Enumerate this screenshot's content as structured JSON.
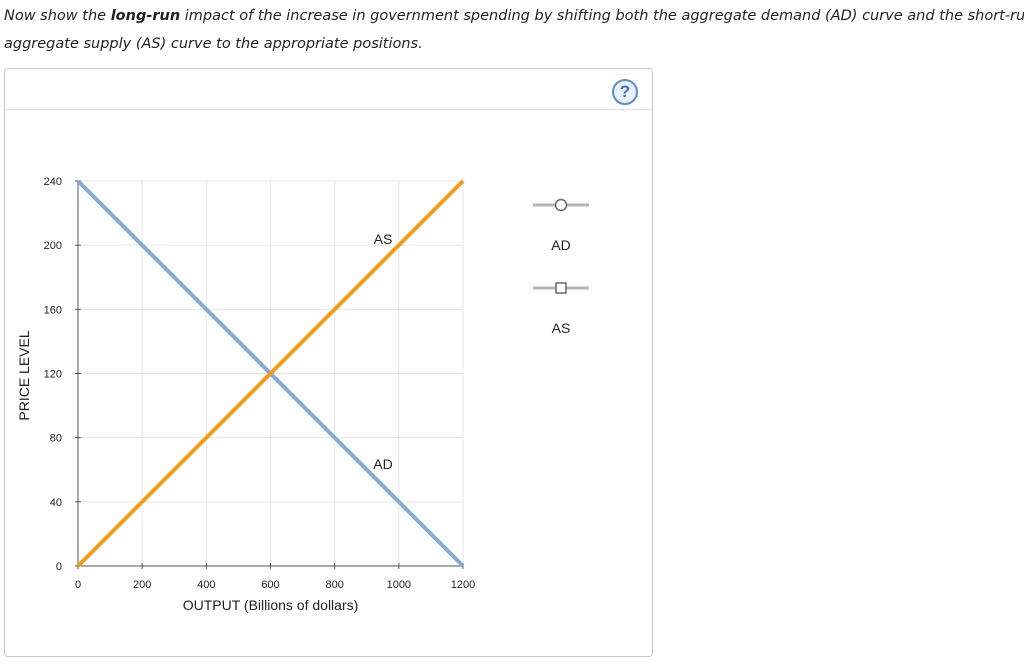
{
  "instructions": {
    "line1_prefix": "Now show the ",
    "line1_bold": "long-run",
    "line1_suffix": " impact of the increase in government spending by shifting both the aggregate demand (AD) curve and the short-run",
    "line2": "aggregate supply (AS) curve to the appropriate positions."
  },
  "help": {
    "label": "?"
  },
  "palette": [
    {
      "name": "AD",
      "marker": "circle"
    },
    {
      "name": "AS",
      "marker": "square"
    }
  ],
  "colors": {
    "ad": "#85aad3",
    "as": "#f39b1e",
    "grid": "#e6e6e6",
    "axis": "#555555",
    "palette_line": "#b5b5b5"
  },
  "chart_data": {
    "type": "line",
    "xlabel": "OUTPUT (Billions of dollars)",
    "ylabel": "PRICE LEVEL",
    "xlim": [
      0,
      1200
    ],
    "ylim": [
      0,
      240
    ],
    "xticks": [
      0,
      200,
      400,
      600,
      800,
      1000,
      1200
    ],
    "yticks": [
      0,
      40,
      80,
      120,
      160,
      200,
      240
    ],
    "grid": true,
    "series": [
      {
        "name": "AD",
        "x": [
          0,
          1200
        ],
        "y": [
          240,
          0
        ],
        "label_at": [
          960,
          60
        ]
      },
      {
        "name": "AS",
        "x": [
          0,
          1200
        ],
        "y": [
          0,
          240
        ],
        "label_at": [
          960,
          200
        ]
      }
    ]
  }
}
